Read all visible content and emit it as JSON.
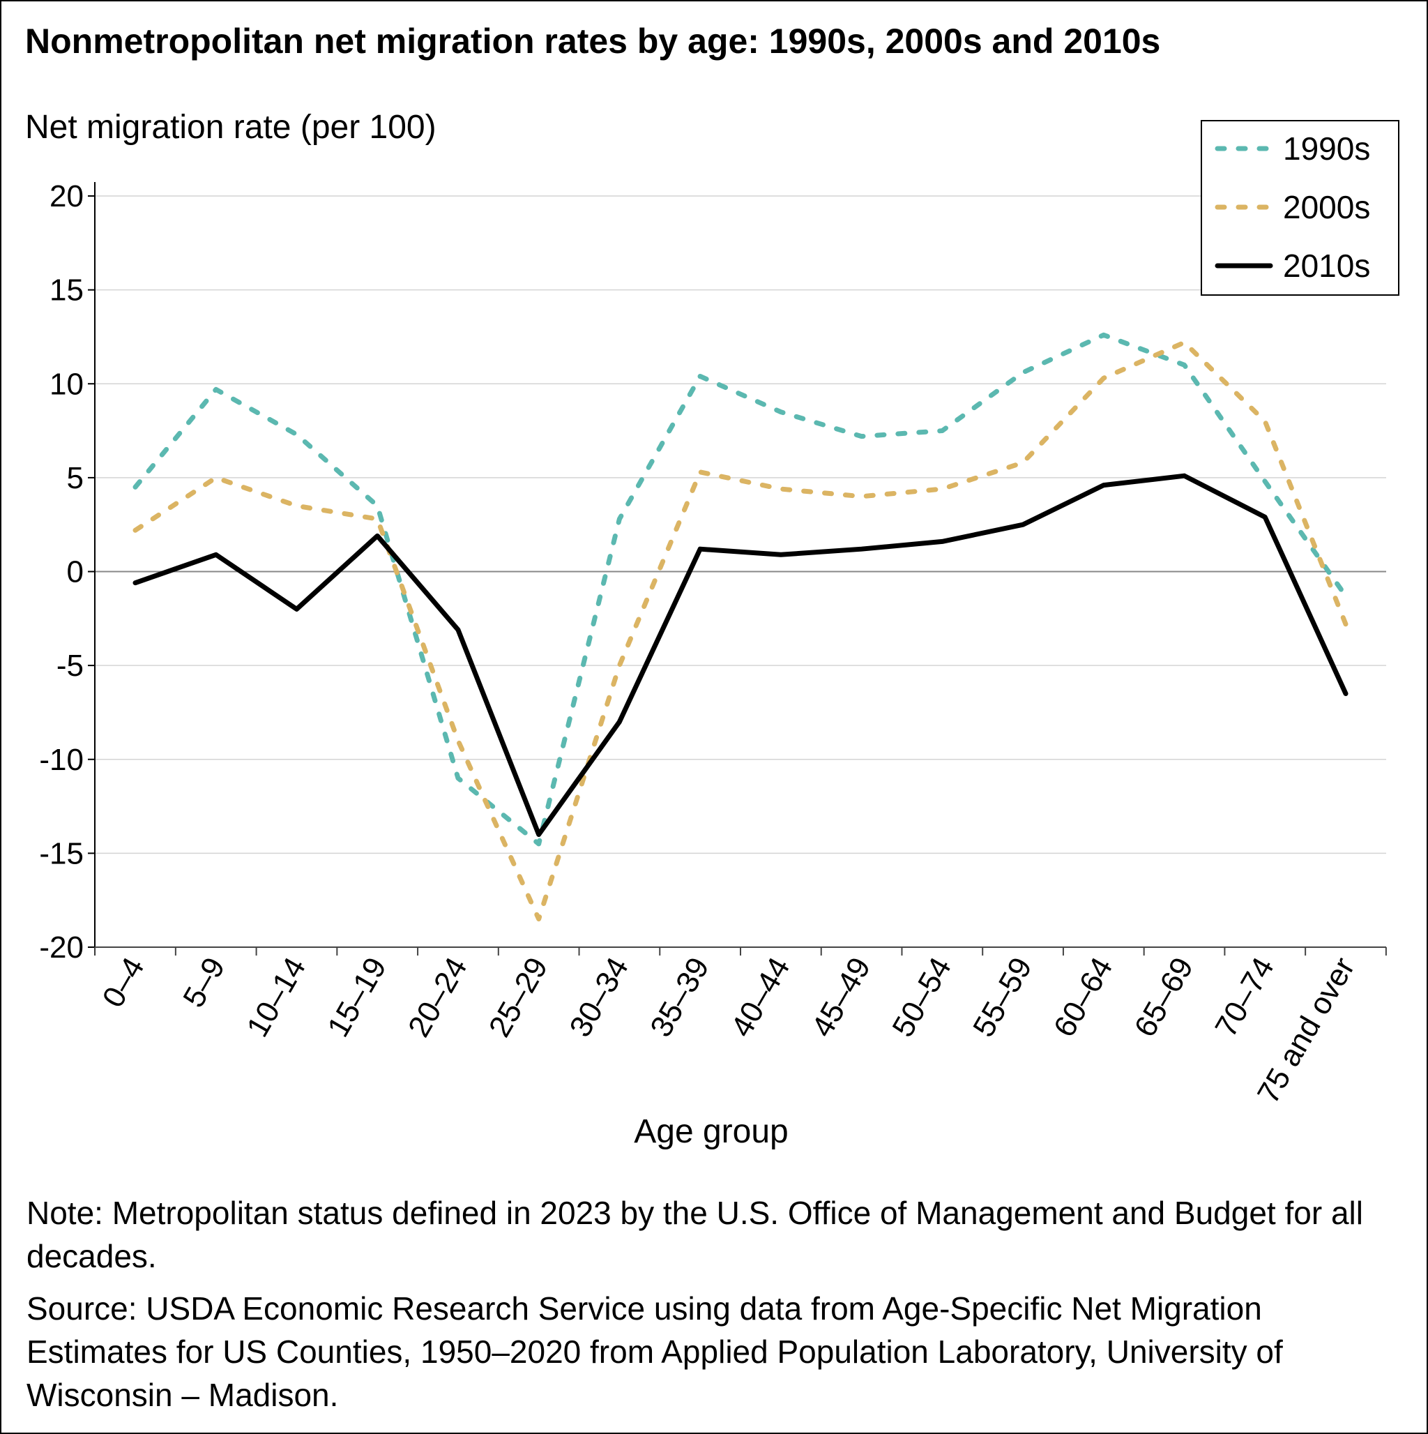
{
  "chart_data": {
    "type": "line",
    "title": "Nonmetropolitan net migration rates by age: 1990s, 2000s and 2010s",
    "ylabel": "Net migration rate (per 100)",
    "xlabel": "Age group",
    "ylim": [
      -20,
      20
    ],
    "yticks": [
      20,
      15,
      10,
      5,
      0,
      -5,
      -10,
      -15,
      -20
    ],
    "grid": true,
    "legend": "top-right",
    "categories": [
      "0–4",
      "5–9",
      "10–14",
      "15–19",
      "20–24",
      "25–29",
      "30–34",
      "35–39",
      "40–44",
      "45–49",
      "50–54",
      "55–59",
      "60–64",
      "65–69",
      "70–74",
      "75 and over"
    ],
    "series": [
      {
        "name": "1990s",
        "color": "#5bb8b0",
        "style": "dashed",
        "values": [
          4.5,
          9.7,
          7.3,
          3.5,
          -11.0,
          -14.5,
          2.8,
          10.4,
          8.5,
          7.2,
          7.5,
          10.6,
          12.6,
          11.0,
          4.8,
          -1.3
        ]
      },
      {
        "name": "2000s",
        "color": "#dbb463",
        "style": "dashed",
        "values": [
          2.2,
          5.0,
          3.5,
          2.8,
          -9.0,
          -18.5,
          -5.0,
          5.3,
          4.4,
          4.0,
          4.4,
          5.8,
          10.3,
          12.2,
          8.0,
          -2.8
        ]
      },
      {
        "name": "2010s",
        "color": "#000000",
        "style": "solid",
        "values": [
          -0.6,
          0.9,
          -2.0,
          1.9,
          -3.1,
          -14.0,
          -8.0,
          1.2,
          0.9,
          1.2,
          1.6,
          2.5,
          4.6,
          5.1,
          2.9,
          -6.5
        ]
      }
    ]
  },
  "notes": {
    "note": "Note: Metropolitan status defined in 2023 by the U.S. Office of Management and Budget for all decades.",
    "source": "Source: USDA Economic Research Service using data from Age-Specific Net Migration Estimates for US Counties, 1950–2020 from Applied Population Laboratory, University of Wisconsin – Madison."
  }
}
